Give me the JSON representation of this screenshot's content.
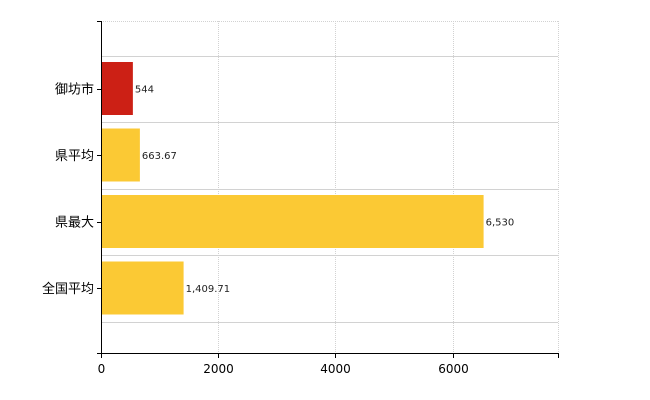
{
  "chart_data": {
    "type": "bar",
    "orientation": "horizontal",
    "title": "",
    "xlabel": "",
    "ylabel": "",
    "categories": [
      "御坊市",
      "県平均",
      "県最大",
      "全国平均"
    ],
    "values": [
      544,
      663.67,
      6530,
      1409.71
    ],
    "value_labels": [
      "544",
      "663.67",
      "6,530",
      "1,409.71"
    ],
    "colors": [
      "#cc2015",
      "#fbc934",
      "#fbc934",
      "#fbc934"
    ],
    "xlim": [
      0,
      7800
    ],
    "xticks": [
      0,
      2000,
      4000,
      6000
    ],
    "xtick_labels": [
      "0",
      "2000",
      "4000",
      "6000"
    ],
    "grid": true,
    "legend": "none"
  }
}
